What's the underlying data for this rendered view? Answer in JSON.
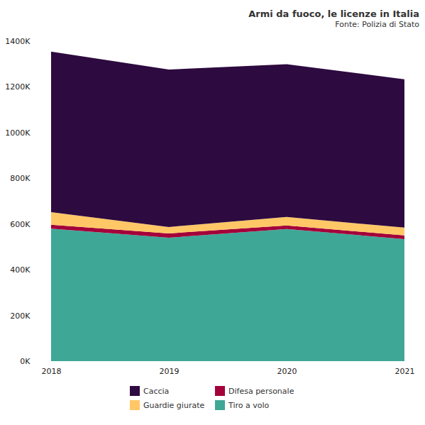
{
  "chart_data": {
    "type": "area",
    "stacked": true,
    "title": "Armi da fuoco, le licenze in Italia",
    "subtitle": "Fonte: Polizia di Stato",
    "x": [
      2018,
      2019,
      2020,
      2021
    ],
    "xlim": [
      2018,
      2021
    ],
    "xticks": [
      2018,
      2019,
      2020,
      2021
    ],
    "ylim": [
      0,
      1400000
    ],
    "yticks": [
      {
        "value": 0,
        "label": "0K"
      },
      {
        "value": 200000,
        "label": "200K"
      },
      {
        "value": 400000,
        "label": "400K"
      },
      {
        "value": 600000,
        "label": "600K"
      },
      {
        "value": 800000,
        "label": "800K"
      },
      {
        "value": 1000000,
        "label": "1000K"
      },
      {
        "value": 1200000,
        "label": "1200K"
      },
      {
        "value": 1400000,
        "label": "1400K"
      }
    ],
    "grid": false,
    "legend": "bottom",
    "series": [
      {
        "name": "Tiro a volo",
        "color": "#3fa796",
        "values": [
          580000,
          540000,
          578000,
          534000
        ]
      },
      {
        "name": "Difesa personale",
        "color": "#a4003a",
        "values": [
          17000,
          19000,
          16000,
          16000
        ]
      },
      {
        "name": "Guardie giurate",
        "color": "#ffc766",
        "values": [
          55000,
          28000,
          37000,
          34000
        ]
      },
      {
        "name": "Caccia",
        "color": "#2d0a3f",
        "values": [
          702000,
          689000,
          668000,
          649000
        ]
      }
    ]
  }
}
